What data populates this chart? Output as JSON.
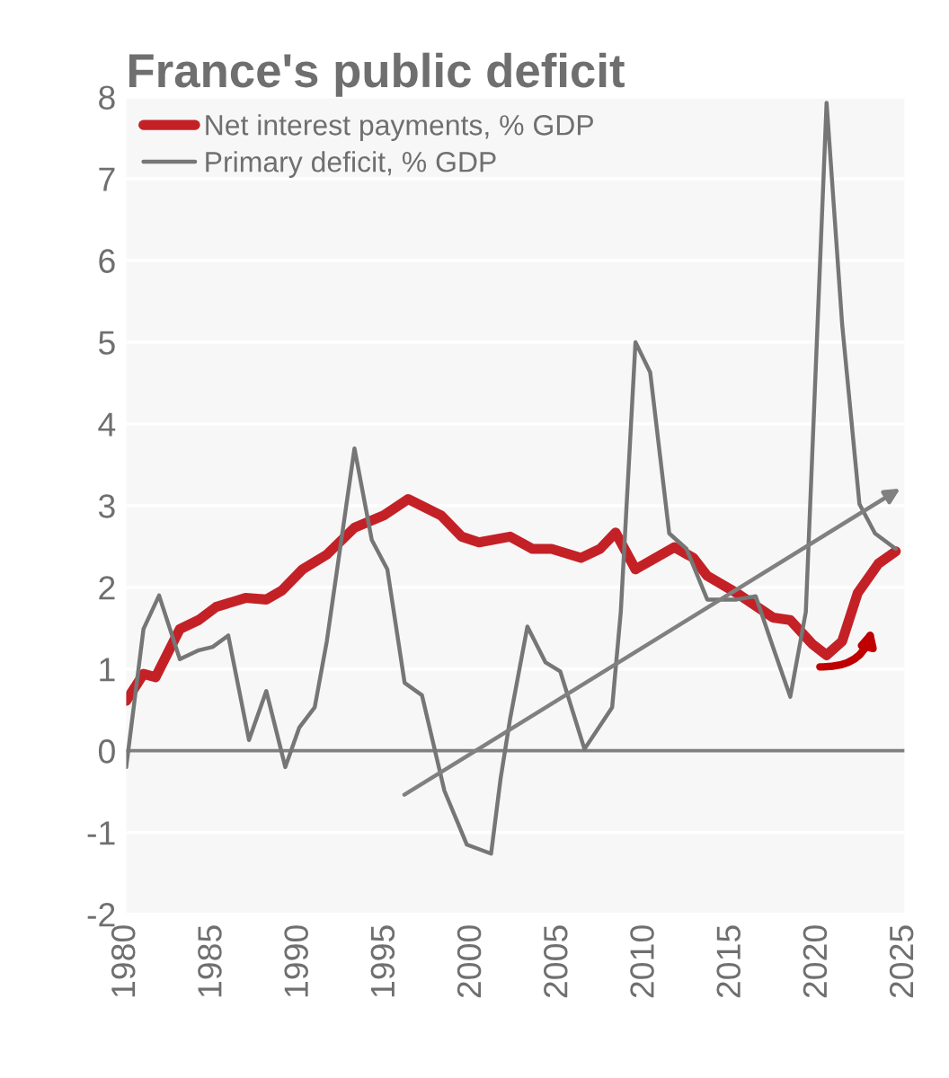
{
  "chart_data": {
    "type": "line",
    "title": "France's public deficit",
    "xlim": [
      1980,
      2025
    ],
    "xticks": [
      1980,
      1985,
      1990,
      1995,
      2000,
      2005,
      2010,
      2015,
      2020,
      2025
    ],
    "ylim": [
      -2,
      8
    ],
    "yticks": [
      -2,
      -1,
      0,
      1,
      2,
      3,
      4,
      5,
      6,
      7,
      8
    ],
    "grid": "y",
    "legend": "top left",
    "ref_lines": [
      {
        "axis": "y",
        "value": 0,
        "color": "#7f7f7f"
      }
    ],
    "series": [
      {
        "name": "Net interest payments, % GDP",
        "color": "#c42127",
        "x": [
          1980,
          1981.0,
          1981.7,
          1983.1,
          1984.2,
          1985.2,
          1986.9,
          1988.1,
          1989.0,
          1990.2,
          1991.6,
          1993.2,
          1994.9,
          1996.3,
          1998.2,
          1999.4,
          2000.4,
          2002.2,
          2003.5,
          2004.6,
          2006.3,
          2007.4,
          2008.3,
          2009.45,
          2011.7,
          2012.8,
          2013.6,
          2015.3,
          2017.4,
          2018.4,
          2019.7,
          2020.5,
          2021.4,
          2022.3,
          2023.5,
          2024.5
        ],
        "values": [
          0.61,
          0.94,
          0.9,
          1.49,
          1.6,
          1.76,
          1.87,
          1.85,
          1.96,
          2.22,
          2.4,
          2.73,
          2.88,
          3.08,
          2.88,
          2.62,
          2.55,
          2.62,
          2.47,
          2.47,
          2.36,
          2.47,
          2.67,
          2.22,
          2.49,
          2.36,
          2.14,
          1.93,
          1.63,
          1.6,
          1.3,
          1.17,
          1.34,
          1.93,
          2.29,
          2.44
        ]
      },
      {
        "name": "Primary deficit, % GDP",
        "color": "#767676",
        "x": [
          1980,
          1981.0,
          1981.9,
          1983.1,
          1984.2,
          1985.0,
          1985.9,
          1987.1,
          1988.1,
          1989.2,
          1990.0,
          1990.9,
          1991.6,
          1993.2,
          1994.2,
          1995.1,
          1996.1,
          1997.1,
          1998.4,
          1999.7,
          2001.1,
          2001.65,
          2002.2,
          2003.2,
          2004.25,
          2005.1,
          2006.5,
          2008.1,
          2008.6,
          2009.45,
          2010.3,
          2011.4,
          2012.4,
          2013.6,
          2015.3,
          2016.4,
          2017.4,
          2018.4,
          2019.3,
          2020.5,
          2021.4,
          2022.4,
          2023.3,
          2024.5
        ],
        "values": [
          -0.2,
          1.49,
          1.9,
          1.12,
          1.23,
          1.27,
          1.41,
          0.13,
          0.73,
          -0.2,
          0.28,
          0.53,
          1.34,
          3.7,
          2.58,
          2.22,
          0.83,
          0.68,
          -0.49,
          -1.15,
          -1.26,
          -0.34,
          0.39,
          1.52,
          1.08,
          0.97,
          0.02,
          0.53,
          1.7,
          5.0,
          4.63,
          2.66,
          2.47,
          1.85,
          1.85,
          1.89,
          1.27,
          0.66,
          1.7,
          7.93,
          5.22,
          3.02,
          2.66,
          2.47
        ]
      }
    ]
  }
}
